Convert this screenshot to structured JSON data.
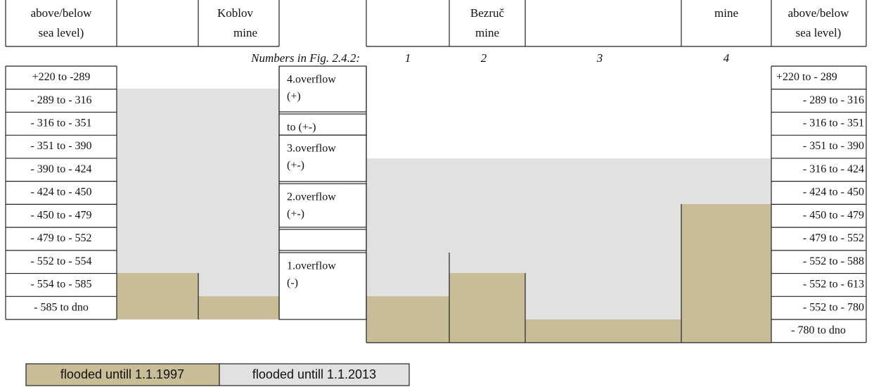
{
  "left_header": {
    "level": [
      "above/below",
      "sea level)"
    ],
    "mine": [
      "Koblov",
      "mine"
    ]
  },
  "numbers_caption": "Numbers in Fig. 2.4.2:",
  "left_rows": [
    "+220 to -289",
    "- 289 to - 316",
    "- 316 to - 351",
    "- 351 to - 390",
    "- 390 to - 424",
    "- 424 to - 450",
    "- 450 to - 479",
    "- 479 to - 552",
    "- 552 to - 554",
    "- 554 to - 585",
    "- 585 to dno"
  ],
  "overflows": [
    [
      "4.overflow",
      "(+)"
    ],
    [
      "to (+-)"
    ],
    [
      "3.overflow",
      "(+-)"
    ],
    [
      "2.overflow",
      "(+-)"
    ],
    [
      "1.overflow",
      "(-)"
    ]
  ],
  "right_header": {
    "bezruc": [
      "Bezruč",
      "mine"
    ],
    "mine": "mine",
    "level": [
      "above/below",
      "sea level)"
    ],
    "numbers": [
      "1",
      "2",
      "3",
      "4"
    ]
  },
  "right_rows": [
    "+220 to - 289",
    "- 289 to - 316",
    "- 316 to - 351",
    "- 351 to - 390",
    "- 316 to - 424",
    "- 424 to - 450",
    "- 450 to - 479",
    "- 479 to - 552",
    "- 552 to - 588",
    "- 552 to - 613",
    "- 552 to - 780",
    "- 780 to dno"
  ],
  "legend": [
    "flooded untill 1.1.1997",
    "flooded untill 1.1.2013"
  ]
}
